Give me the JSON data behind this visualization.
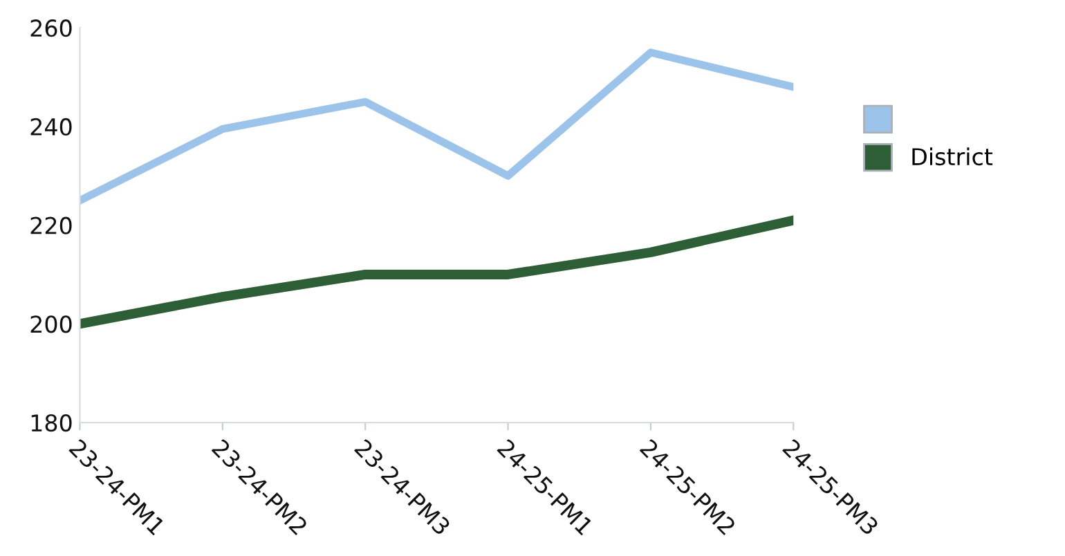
{
  "chart_data": {
    "type": "line",
    "categories": [
      "23-24-PM1",
      "23-24-PM2",
      "23-24-PM3",
      "24-25-PM1",
      "24-25-PM2",
      "24-25-PM3"
    ],
    "series": [
      {
        "color": "#9cc3ea",
        "values": [
          225,
          239.5,
          245,
          230,
          255,
          248
        ]
      },
      {
        "name": "District",
        "color": "#2e5e35",
        "values": [
          200,
          205.5,
          210,
          210,
          214.5,
          221
        ]
      }
    ],
    "ylim": [
      180,
      260
    ],
    "yticks": [
      180,
      200,
      220,
      240,
      260
    ],
    "grid": false,
    "legend": "right",
    "marker": "none",
    "line_style": "solid"
  }
}
